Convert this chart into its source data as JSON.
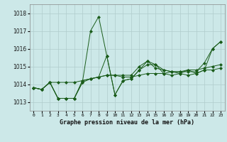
{
  "title": "Graphe pression niveau de la mer (hPa)",
  "bg_color": "#cce8e8",
  "grid_color": "#b0cccc",
  "line_color": "#1a5c1a",
  "x_ticks": [
    0,
    1,
    2,
    3,
    4,
    5,
    6,
    7,
    8,
    9,
    10,
    11,
    12,
    13,
    14,
    15,
    16,
    17,
    18,
    19,
    20,
    21,
    22,
    23
  ],
  "ylim": [
    1012.5,
    1018.5
  ],
  "yticks": [
    1013,
    1014,
    1015,
    1016,
    1017,
    1018
  ],
  "series": [
    [
      1013.8,
      1013.7,
      1014.1,
      1013.2,
      1013.2,
      1013.2,
      1014.1,
      1017.0,
      1017.8,
      1015.6,
      1013.4,
      1014.2,
      1014.3,
      1014.8,
      1015.3,
      1015.1,
      1014.8,
      1014.7,
      1014.6,
      1014.8,
      1014.6,
      1014.8,
      1016.0,
      1016.4
    ],
    [
      1013.8,
      1013.7,
      1014.1,
      1013.2,
      1013.2,
      1013.2,
      1014.2,
      1014.3,
      1014.4,
      1014.5,
      1014.5,
      1014.4,
      1014.4,
      1014.5,
      1014.6,
      1014.6,
      1014.6,
      1014.7,
      1014.7,
      1014.8,
      1014.8,
      1014.9,
      1015.0,
      1015.1
    ],
    [
      1013.8,
      1013.7,
      1014.1,
      1014.1,
      1014.1,
      1014.1,
      1014.2,
      1014.3,
      1014.4,
      1014.5,
      1014.5,
      1014.5,
      1014.5,
      1015.0,
      1015.3,
      1014.9,
      1014.8,
      1014.7,
      1014.7,
      1014.7,
      1014.7,
      1015.2,
      1016.0,
      1016.4
    ],
    [
      1013.8,
      1013.7,
      1014.1,
      1013.2,
      1013.2,
      1013.2,
      1014.1,
      1014.3,
      1014.4,
      1015.6,
      1013.4,
      1014.2,
      1014.3,
      1014.8,
      1015.1,
      1015.1,
      1014.6,
      1014.5,
      1014.6,
      1014.5,
      1014.6,
      1014.8,
      1014.8,
      1014.9
    ]
  ]
}
